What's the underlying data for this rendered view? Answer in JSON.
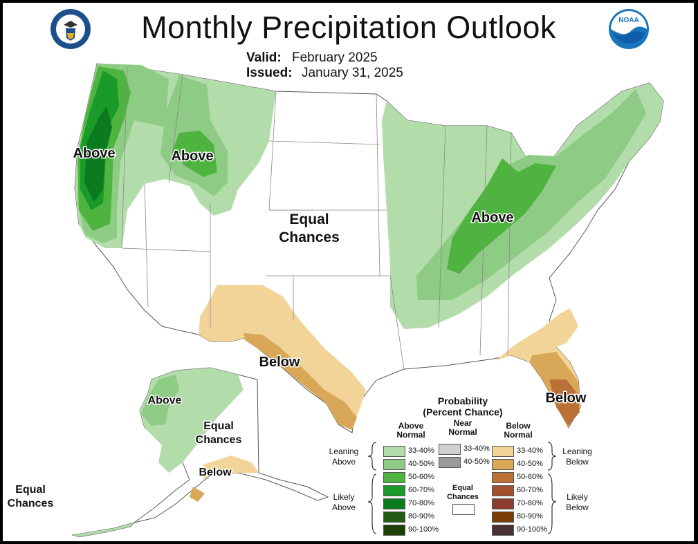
{
  "header": {
    "title": "Monthly Precipitation Outlook",
    "valid_label": "Valid:",
    "valid_value": "February 2025",
    "issued_label": "Issued:",
    "issued_value": "January 31, 2025"
  },
  "logos": {
    "left": "department-of-commerce-seal",
    "right": "noaa-logo",
    "right_text": "NOAA"
  },
  "regions": {
    "pacific_nw": "Above",
    "northern_rockies": "Above",
    "ohio_valley": "Above",
    "center_line1": "Equal",
    "center_line2": "Chances",
    "southern_plains": "Below",
    "florida": "Below",
    "alaska_above": "Above",
    "alaska_equal_line1": "Equal",
    "alaska_equal_line2": "Chances",
    "alaska_below": "Below",
    "hawaii_equal_line1": "Equal",
    "hawaii_equal_line2": "Chances"
  },
  "legend": {
    "title_line1": "Probability",
    "title_line2": "(Percent Chance)",
    "above_head_1": "Above",
    "above_head_2": "Normal",
    "near_head_1": "Near",
    "near_head_2": "Normal",
    "below_head_1": "Below",
    "below_head_2": "Normal",
    "leaning_above_1": "Leaning",
    "leaning_above_2": "Above",
    "likely_above_1": "Likely",
    "likely_above_2": "Above",
    "leaning_below_1": "Leaning",
    "leaning_below_2": "Below",
    "likely_below_1": "Likely",
    "likely_below_2": "Below",
    "equal_1": "Equal",
    "equal_2": "Chances",
    "above_items": [
      {
        "label": "33-40%",
        "color": "#b3dcab"
      },
      {
        "label": "40-50%",
        "color": "#8ecb84"
      },
      {
        "label": "50-60%",
        "color": "#4fb43f"
      },
      {
        "label": "60-70%",
        "color": "#1a9a28"
      },
      {
        "label": "70-80%",
        "color": "#0c7a1e"
      },
      {
        "label": "80-90%",
        "color": "#235c14"
      },
      {
        "label": "90-100%",
        "color": "#1c4008"
      }
    ],
    "near_items": [
      {
        "label": "33-40%",
        "color": "#d0d0d0"
      },
      {
        "label": "40-50%",
        "color": "#9a9a9a"
      }
    ],
    "below_items": [
      {
        "label": "33-40%",
        "color": "#f2d499"
      },
      {
        "label": "40-50%",
        "color": "#d8a858"
      },
      {
        "label": "50-60%",
        "color": "#bb7036"
      },
      {
        "label": "60-70%",
        "color": "#a2502e"
      },
      {
        "label": "70-80%",
        "color": "#8c3c30"
      },
      {
        "label": "80-90%",
        "color": "#7a3e08"
      },
      {
        "label": "90-100%",
        "color": "#4a3030"
      }
    ]
  }
}
